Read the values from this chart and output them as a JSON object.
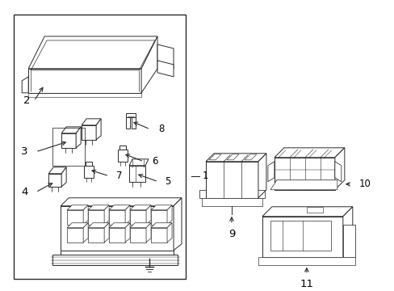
{
  "bg_color": "#ffffff",
  "line_color": "#2a2a2a",
  "text_color": "#000000",
  "fig_width": 4.89,
  "fig_height": 3.6,
  "dpi": 100,
  "font_size": 8.5,
  "lw": 0.7
}
